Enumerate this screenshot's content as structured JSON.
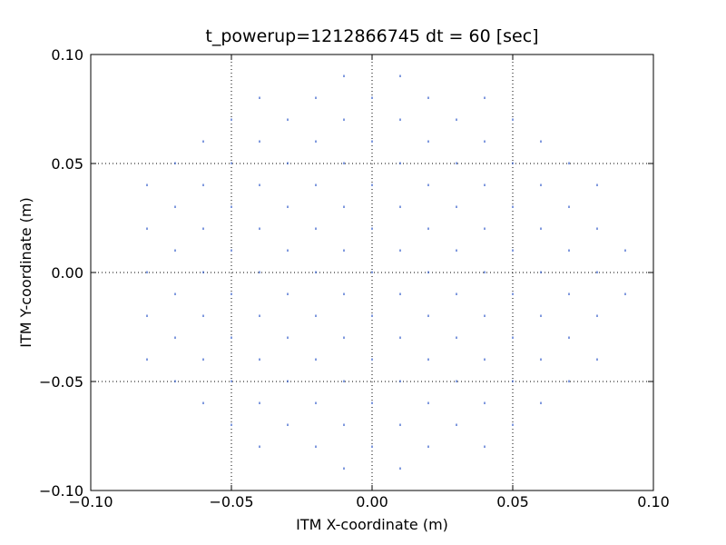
{
  "chart_data": {
    "type": "scatter",
    "title": "t_powerup=1212866745 dt = 60 [sec]",
    "x_label": "ITM X-coordinate (m)",
    "y_label": "ITM Y-coordinate (m)",
    "color": "#2a55c8",
    "grid": true,
    "xlim": [
      -0.1,
      0.1
    ],
    "ylim": [
      -0.1,
      0.1
    ],
    "xticks": [
      {
        "value": -0.1,
        "label": "−0.10"
      },
      {
        "value": -0.05,
        "label": "−0.05"
      },
      {
        "value": 0,
        "label": "0.00"
      },
      {
        "value": 0.05,
        "label": "0.05"
      },
      {
        "value": 0.1,
        "label": "0.10"
      }
    ],
    "yticks": [
      {
        "value": -0.1,
        "label": "−0.10"
      },
      {
        "value": -0.05,
        "label": "−0.05"
      },
      {
        "value": 0,
        "label": "0.00"
      },
      {
        "value": 0.05,
        "label": "0.05"
      },
      {
        "value": 0.1,
        "label": "0.10"
      }
    ],
    "x": [
      -0.08,
      -0.08,
      -0.08,
      -0.08,
      -0.08,
      -0.07,
      -0.07,
      -0.07,
      -0.07,
      -0.07,
      -0.07,
      -0.06,
      -0.06,
      -0.06,
      -0.06,
      -0.06,
      -0.06,
      -0.06,
      -0.05,
      -0.05,
      -0.05,
      -0.05,
      -0.05,
      -0.05,
      -0.05,
      -0.05,
      -0.04,
      -0.04,
      -0.04,
      -0.04,
      -0.04,
      -0.04,
      -0.04,
      -0.04,
      -0.04,
      -0.03,
      -0.03,
      -0.03,
      -0.03,
      -0.03,
      -0.03,
      -0.03,
      -0.03,
      -0.02,
      -0.02,
      -0.02,
      -0.02,
      -0.02,
      -0.02,
      -0.02,
      -0.02,
      -0.02,
      -0.01,
      -0.01,
      -0.01,
      -0.01,
      -0.01,
      -0.01,
      -0.01,
      -0.01,
      -0.01,
      -0.01,
      0,
      0,
      0,
      0,
      0,
      0,
      0,
      0,
      0,
      0.01,
      0.01,
      0.01,
      0.01,
      0.01,
      0.01,
      0.01,
      0.01,
      0.01,
      0.01,
      0.02,
      0.02,
      0.02,
      0.02,
      0.02,
      0.02,
      0.02,
      0.02,
      0.02,
      0.03,
      0.03,
      0.03,
      0.03,
      0.03,
      0.03,
      0.03,
      0.03,
      0.04,
      0.04,
      0.04,
      0.04,
      0.04,
      0.04,
      0.04,
      0.04,
      0.04,
      0.05,
      0.05,
      0.05,
      0.05,
      0.05,
      0.05,
      0.05,
      0.05,
      0.06,
      0.06,
      0.06,
      0.06,
      0.06,
      0.06,
      0.06,
      0.07,
      0.07,
      0.07,
      0.07,
      0.07,
      0.07,
      0.08,
      0.08,
      0.08,
      0.08,
      0.08,
      0.09,
      0.09
    ],
    "y": [
      -0.04,
      -0.02,
      0,
      0.02,
      0.04,
      -0.05,
      -0.03,
      -0.01,
      0.01,
      0.03,
      0.05,
      -0.06,
      -0.04,
      -0.02,
      0,
      0.02,
      0.04,
      0.06,
      -0.07,
      -0.05,
      -0.03,
      -0.01,
      0.01,
      0.03,
      0.05,
      0.07,
      -0.08,
      -0.06,
      -0.04,
      -0.02,
      0,
      0.02,
      0.04,
      0.06,
      0.08,
      -0.07,
      -0.05,
      -0.03,
      -0.01,
      0.01,
      0.03,
      0.05,
      0.07,
      -0.08,
      -0.06,
      -0.04,
      -0.02,
      0,
      0.02,
      0.04,
      0.06,
      0.08,
      -0.09,
      -0.07,
      -0.05,
      -0.03,
      -0.01,
      0.01,
      0.03,
      0.05,
      0.07,
      0.09,
      -0.08,
      -0.06,
      -0.04,
      -0.02,
      0,
      0.02,
      0.04,
      0.06,
      0.08,
      -0.09,
      -0.07,
      -0.05,
      -0.03,
      -0.01,
      0.01,
      0.03,
      0.05,
      0.07,
      0.09,
      -0.08,
      -0.06,
      -0.04,
      -0.02,
      0,
      0.02,
      0.04,
      0.06,
      0.08,
      -0.07,
      -0.05,
      -0.03,
      -0.01,
      0.01,
      0.03,
      0.05,
      0.07,
      -0.08,
      -0.06,
      -0.04,
      -0.02,
      0,
      0.02,
      0.04,
      0.06,
      0.08,
      -0.07,
      -0.05,
      -0.03,
      -0.01,
      0.01,
      0.03,
      0.05,
      0.07,
      -0.06,
      -0.04,
      -0.02,
      0,
      0.02,
      0.04,
      0.06,
      -0.05,
      -0.03,
      -0.01,
      0.01,
      0.03,
      0.05,
      -0.04,
      -0.02,
      0,
      0.02,
      0.04,
      -0.01,
      0.01
    ]
  }
}
